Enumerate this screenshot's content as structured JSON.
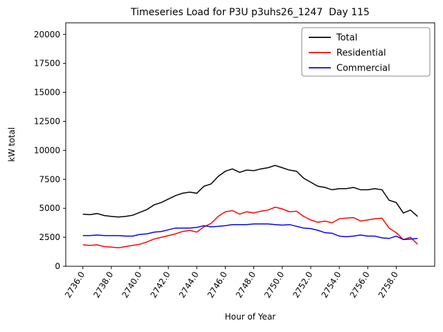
{
  "chart_data": {
    "type": "line",
    "title": "Timeseries Load for P3U p3uhs26_1247  Day 115",
    "xlabel": "Hour of Year",
    "ylabel": "kW total",
    "grid": false,
    "legend_position": "upper right",
    "xlim": [
      2734.8,
      2760.7
    ],
    "ylim": [
      0,
      21000
    ],
    "x_ticks": [
      2736.0,
      2738.0,
      2740.0,
      2742.0,
      2744.0,
      2746.0,
      2748.0,
      2750.0,
      2752.0,
      2754.0,
      2756.0,
      2758.0
    ],
    "y_ticks": [
      0,
      2500,
      5000,
      7500,
      10000,
      12500,
      15000,
      17500,
      20000
    ],
    "x": [
      2736.0,
      2736.5,
      2737.0,
      2737.5,
      2738.0,
      2738.5,
      2739.0,
      2739.5,
      2740.0,
      2740.5,
      2741.0,
      2741.5,
      2742.0,
      2742.5,
      2743.0,
      2743.5,
      2744.0,
      2744.5,
      2745.0,
      2745.5,
      2746.0,
      2746.5,
      2747.0,
      2747.5,
      2748.0,
      2748.5,
      2749.0,
      2749.5,
      2750.0,
      2750.5,
      2751.0,
      2751.5,
      2752.0,
      2752.5,
      2753.0,
      2753.5,
      2754.0,
      2754.5,
      2755.0,
      2755.5,
      2756.0,
      2756.5,
      2757.0,
      2757.5,
      2758.0,
      2758.5,
      2759.0,
      2759.5
    ],
    "series": [
      {
        "name": "Total",
        "color": "#000000",
        "values": [
          4500,
          4450,
          4550,
          4380,
          4300,
          4250,
          4300,
          4400,
          4650,
          4900,
          5300,
          5500,
          5800,
          6100,
          6300,
          6400,
          6300,
          6900,
          7100,
          7750,
          8200,
          8400,
          8100,
          8300,
          8250,
          8400,
          8500,
          8700,
          8500,
          8300,
          8200,
          7600,
          7250,
          6900,
          6800,
          6600,
          6700,
          6700,
          6800,
          6600,
          6600,
          6700,
          6600,
          5700,
          5500,
          4600,
          4850,
          4300
        ]
      },
      {
        "name": "Residential",
        "color": "#ff0000",
        "values": [
          1850,
          1800,
          1850,
          1700,
          1650,
          1600,
          1700,
          1800,
          1900,
          2100,
          2350,
          2500,
          2650,
          2800,
          3000,
          3100,
          2950,
          3400,
          3700,
          4300,
          4700,
          4800,
          4500,
          4700,
          4600,
          4750,
          4850,
          5100,
          4950,
          4700,
          4750,
          4300,
          4000,
          3800,
          3900,
          3750,
          4100,
          4150,
          4200,
          3900,
          4000,
          4100,
          4150,
          3300,
          2900,
          2300,
          2500,
          1900
        ]
      },
      {
        "name": "Commercial",
        "color": "#0000ff",
        "values": [
          2650,
          2650,
          2700,
          2650,
          2650,
          2650,
          2600,
          2600,
          2750,
          2800,
          2950,
          3000,
          3150,
          3300,
          3300,
          3300,
          3350,
          3500,
          3400,
          3450,
          3500,
          3600,
          3600,
          3600,
          3650,
          3650,
          3650,
          3600,
          3550,
          3600,
          3450,
          3300,
          3250,
          3100,
          2900,
          2850,
          2600,
          2550,
          2600,
          2700,
          2600,
          2600,
          2450,
          2400,
          2600,
          2300,
          2350,
          2400
        ]
      }
    ]
  }
}
